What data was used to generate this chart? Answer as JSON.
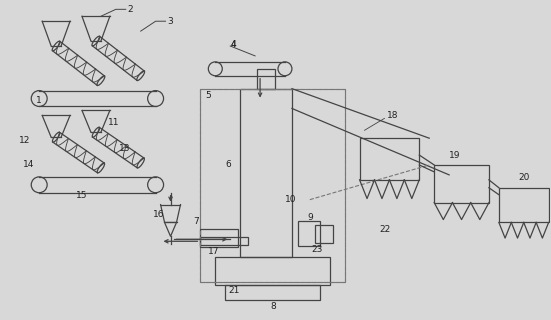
{
  "bg_color": "#d8d8d8",
  "line_color": "#444444",
  "dashed_color": "#777777",
  "label_color": "#222222",
  "fig_width": 5.51,
  "fig_height": 3.2,
  "dpi": 100
}
